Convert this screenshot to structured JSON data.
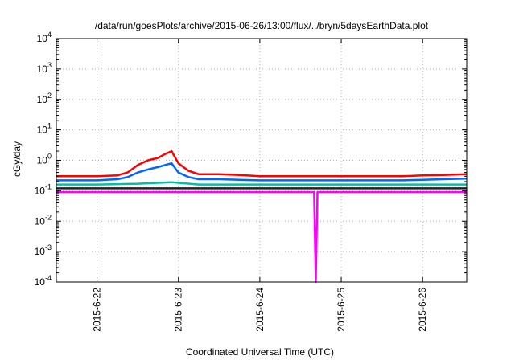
{
  "chart_data": {
    "type": "line",
    "title": "/data/run/goesPlots/archive/2015-06-26/13:00/flux/../bryn/5daysEarthData.plot",
    "xlabel": "Coordinated Universal Time (UTC)",
    "ylabel": "cGy/day",
    "y_scale": "log",
    "ylim": [
      0.0001,
      10000
    ],
    "y_ticks": [
      {
        "value": 0.0001,
        "base": "10",
        "exp": "-4"
      },
      {
        "value": 0.001,
        "base": "10",
        "exp": "-3"
      },
      {
        "value": 0.01,
        "base": "10",
        "exp": "-2"
      },
      {
        "value": 0.1,
        "base": "10",
        "exp": "-1"
      },
      {
        "value": 1,
        "base": "10",
        "exp": "0"
      },
      {
        "value": 10,
        "base": "10",
        "exp": "1"
      },
      {
        "value": 100,
        "base": "10",
        "exp": "2"
      },
      {
        "value": 1000,
        "base": "10",
        "exp": "3"
      },
      {
        "value": 10000,
        "base": "10",
        "exp": "4"
      }
    ],
    "xlim": [
      "2015-06-21T12:00",
      "2015-06-26T13:00"
    ],
    "x_ticks": [
      "2015-6-22",
      "2015-6-23",
      "2015-6-24",
      "2015-6-25",
      "2015-6-26"
    ],
    "grid": true,
    "legend": "none",
    "series": [
      {
        "color": "#ff0000",
        "x": [
          "2015-06-21T12:00",
          "2015-06-21T18:00",
          "2015-06-22T00:00",
          "2015-06-22T06:00",
          "2015-06-22T09:00",
          "2015-06-22T12:00",
          "2015-06-22T15:00",
          "2015-06-22T18:00",
          "2015-06-22T20:00",
          "2015-06-22T22:00",
          "2015-06-23T00:00",
          "2015-06-23T03:00",
          "2015-06-23T06:00",
          "2015-06-23T12:00",
          "2015-06-23T18:00",
          "2015-06-24T00:00",
          "2015-06-24T06:00",
          "2015-06-24T12:00",
          "2015-06-24T18:00",
          "2015-06-25T00:00",
          "2015-06-25T06:00",
          "2015-06-25T12:00",
          "2015-06-25T18:00",
          "2015-06-26T00:00",
          "2015-06-26T06:00",
          "2015-06-26T13:00"
        ],
        "values": [
          0.3,
          0.3,
          0.3,
          0.32,
          0.4,
          0.7,
          1.0,
          1.2,
          1.6,
          2.0,
          0.8,
          0.45,
          0.35,
          0.35,
          0.33,
          0.3,
          0.3,
          0.3,
          0.3,
          0.3,
          0.3,
          0.3,
          0.3,
          0.32,
          0.33,
          0.35
        ]
      },
      {
        "color": "#0066ff",
        "x": [
          "2015-06-21T12:00",
          "2015-06-21T18:00",
          "2015-06-22T00:00",
          "2015-06-22T06:00",
          "2015-06-22T09:00",
          "2015-06-22T12:00",
          "2015-06-22T15:00",
          "2015-06-22T18:00",
          "2015-06-22T20:00",
          "2015-06-22T22:00",
          "2015-06-23T00:00",
          "2015-06-23T03:00",
          "2015-06-23T06:00",
          "2015-06-23T12:00",
          "2015-06-23T18:00",
          "2015-06-24T00:00",
          "2015-06-24T06:00",
          "2015-06-24T12:00",
          "2015-06-24T18:00",
          "2015-06-25T00:00",
          "2015-06-25T06:00",
          "2015-06-25T12:00",
          "2015-06-25T18:00",
          "2015-06-26T00:00",
          "2015-06-26T06:00",
          "2015-06-26T13:00"
        ],
        "values": [
          0.22,
          0.22,
          0.22,
          0.24,
          0.28,
          0.4,
          0.5,
          0.6,
          0.7,
          0.8,
          0.4,
          0.28,
          0.24,
          0.24,
          0.23,
          0.22,
          0.22,
          0.22,
          0.22,
          0.22,
          0.22,
          0.22,
          0.22,
          0.23,
          0.24,
          0.25
        ]
      },
      {
        "color": "#00c0a0",
        "x": [
          "2015-06-21T12:00",
          "2015-06-22T00:00",
          "2015-06-22T12:00",
          "2015-06-22T22:00",
          "2015-06-23T06:00",
          "2015-06-24T00:00",
          "2015-06-25T00:00",
          "2015-06-26T00:00",
          "2015-06-26T13:00"
        ],
        "values": [
          0.16,
          0.16,
          0.17,
          0.19,
          0.16,
          0.16,
          0.16,
          0.16,
          0.16
        ]
      },
      {
        "color": "#202020",
        "x": [
          "2015-06-21T12:00",
          "2015-06-22T00:00",
          "2015-06-23T00:00",
          "2015-06-24T00:00",
          "2015-06-25T00:00",
          "2015-06-26T00:00",
          "2015-06-26T13:00"
        ],
        "values": [
          0.12,
          0.12,
          0.12,
          0.12,
          0.12,
          0.12,
          0.12
        ]
      },
      {
        "color": "#ff00ff",
        "x": [
          "2015-06-21T12:00",
          "2015-06-22T00:00",
          "2015-06-23T00:00",
          "2015-06-24T00:00",
          "2015-06-24T16:00",
          "2015-06-24T16:30",
          "2015-06-24T17:00",
          "2015-06-25T00:00",
          "2015-06-26T00:00",
          "2015-06-26T13:00"
        ],
        "values": [
          0.09,
          0.09,
          0.09,
          0.09,
          0.09,
          0.0001,
          0.09,
          0.09,
          0.09,
          0.09
        ]
      }
    ]
  }
}
